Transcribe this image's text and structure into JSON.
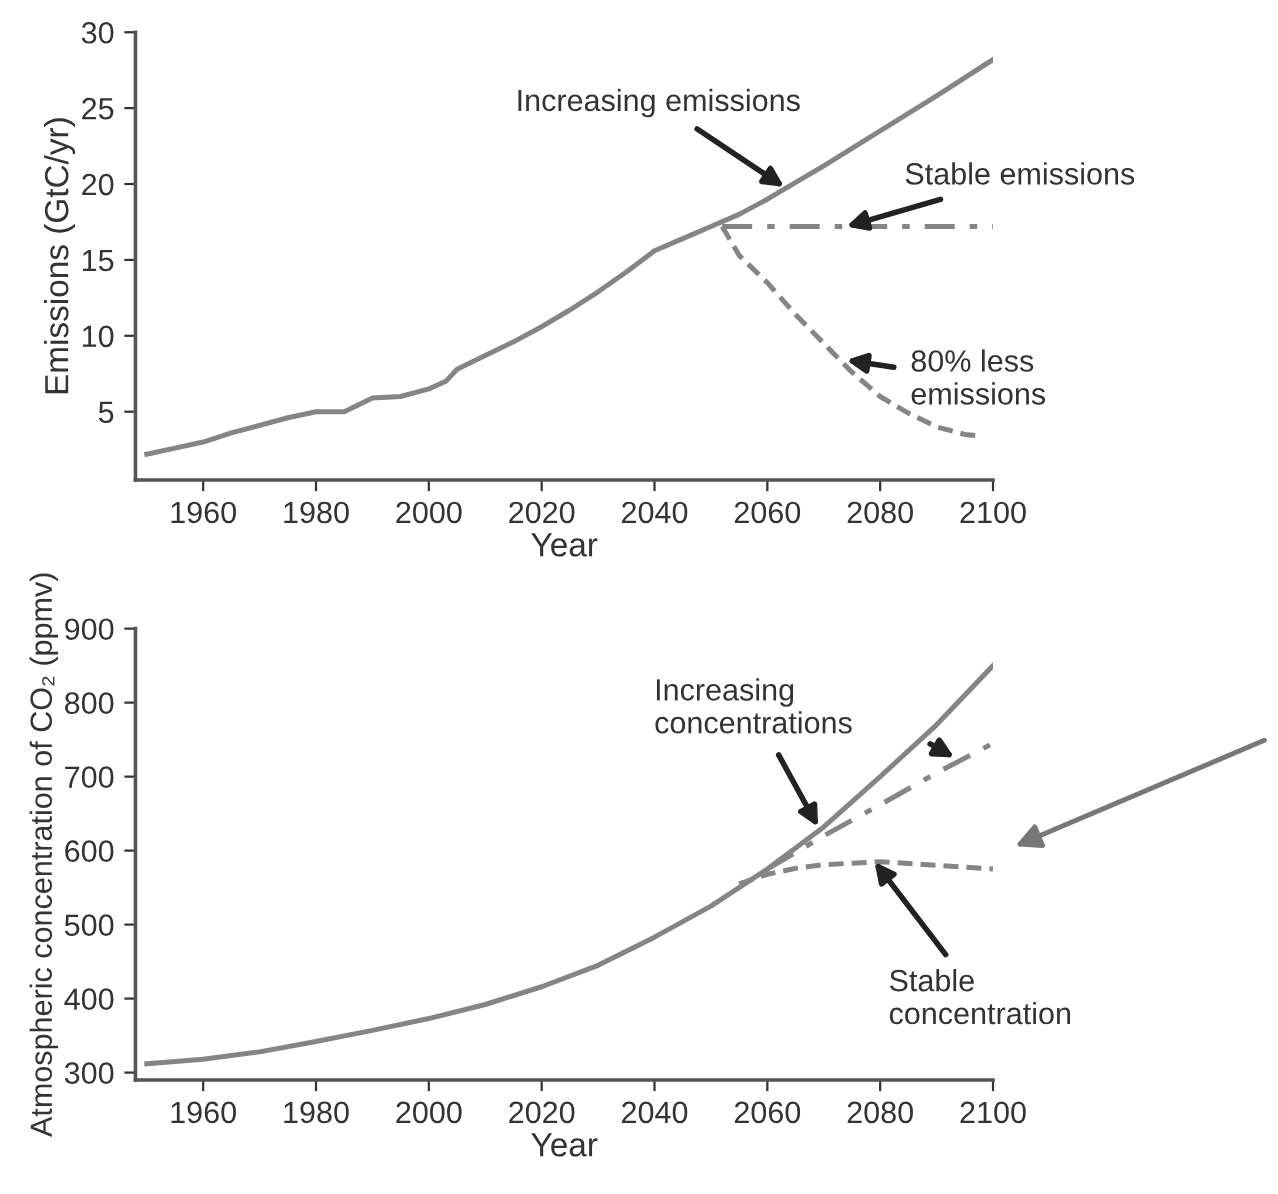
{
  "chart_data": [
    {
      "type": "line",
      "xlabel": "Year",
      "ylabel": "Emissions (GtC/yr)",
      "xlim": [
        1948,
        2100
      ],
      "ylim": [
        0.5,
        30
      ],
      "xticks": [
        1960,
        1980,
        2000,
        2020,
        2040,
        2060,
        2080,
        2100
      ],
      "yticks": [
        5,
        10,
        15,
        20,
        25,
        30
      ],
      "grid": false,
      "marker": "none",
      "series": [
        {
          "color": "#858585",
          "line_style": "solid",
          "x": [
            1950,
            1955,
            1960,
            1965,
            1970,
            1975,
            1980,
            1985,
            1990,
            1995,
            2000,
            2003,
            2005,
            2010,
            2015,
            2020,
            2025,
            2030,
            2035,
            2040,
            2045,
            2050,
            2055,
            2060,
            2070,
            2080,
            2090,
            2100
          ],
          "values": [
            2.2,
            2.6,
            3.0,
            3.6,
            4.1,
            4.6,
            5.0,
            5.0,
            5.9,
            6.0,
            6.5,
            7.0,
            7.8,
            8.7,
            9.6,
            10.6,
            11.7,
            12.9,
            14.2,
            15.6,
            16.4,
            17.2,
            18.0,
            19.0,
            21.2,
            23.5,
            25.8,
            28.2
          ]
        },
        {
          "color": "#858585",
          "line_style": "dashdot",
          "x": [
            2052,
            2060,
            2070,
            2080,
            2090,
            2100
          ],
          "values": [
            17.2,
            17.2,
            17.2,
            17.2,
            17.2,
            17.2
          ]
        },
        {
          "color": "#858585",
          "line_style": "dashed",
          "x": [
            2052,
            2055,
            2060,
            2065,
            2070,
            2075,
            2080,
            2085,
            2090,
            2095,
            2098
          ],
          "values": [
            17.2,
            15.3,
            13.5,
            11.4,
            9.5,
            7.6,
            6.0,
            4.9,
            4.0,
            3.5,
            3.4
          ]
        }
      ],
      "annotations": [
        {
          "text": "Increasing emissions",
          "x": 2063,
          "y": 19.8
        },
        {
          "text": "Stable emissions",
          "x": 2074,
          "y": 17.2
        },
        {
          "text": "80% less\nemissions",
          "x": 2074,
          "y": 8.4
        }
      ]
    },
    {
      "type": "line",
      "xlabel": "Year",
      "ylabel": "Atmospheric concentration of CO₂ (ppmv)",
      "xlim": [
        1948,
        2100
      ],
      "ylim": [
        290,
        900
      ],
      "xticks": [
        1960,
        1980,
        2000,
        2020,
        2040,
        2060,
        2080,
        2100
      ],
      "yticks": [
        300,
        400,
        500,
        600,
        700,
        800,
        900
      ],
      "grid": false,
      "marker": "none",
      "series": [
        {
          "color": "#858585",
          "line_style": "solid",
          "x": [
            1950,
            1960,
            1970,
            1980,
            1990,
            2000,
            2010,
            2020,
            2030,
            2040,
            2050,
            2060,
            2070,
            2080,
            2090,
            2100
          ],
          "values": [
            312,
            318,
            328,
            342,
            357,
            373,
            392,
            416,
            445,
            483,
            525,
            575,
            632,
            700,
            770,
            850
          ]
        },
        {
          "color": "#858585",
          "line_style": "dashdot",
          "x": [
            2060,
            2070,
            2080,
            2090,
            2100
          ],
          "values": [
            575,
            620,
            662,
            705,
            745
          ]
        },
        {
          "color": "#858585",
          "line_style": "dashed",
          "x": [
            2055,
            2060,
            2065,
            2070,
            2080,
            2090,
            2100
          ],
          "values": [
            555,
            568,
            576,
            581,
            585,
            580,
            575
          ]
        }
      ],
      "annotations": [
        {
          "text": "Increasing\nconcentrations",
          "x": 2069,
          "y": 632
        },
        {
          "text": "Stable\nconcentration",
          "x": 2079,
          "y": 585
        }
      ]
    }
  ]
}
